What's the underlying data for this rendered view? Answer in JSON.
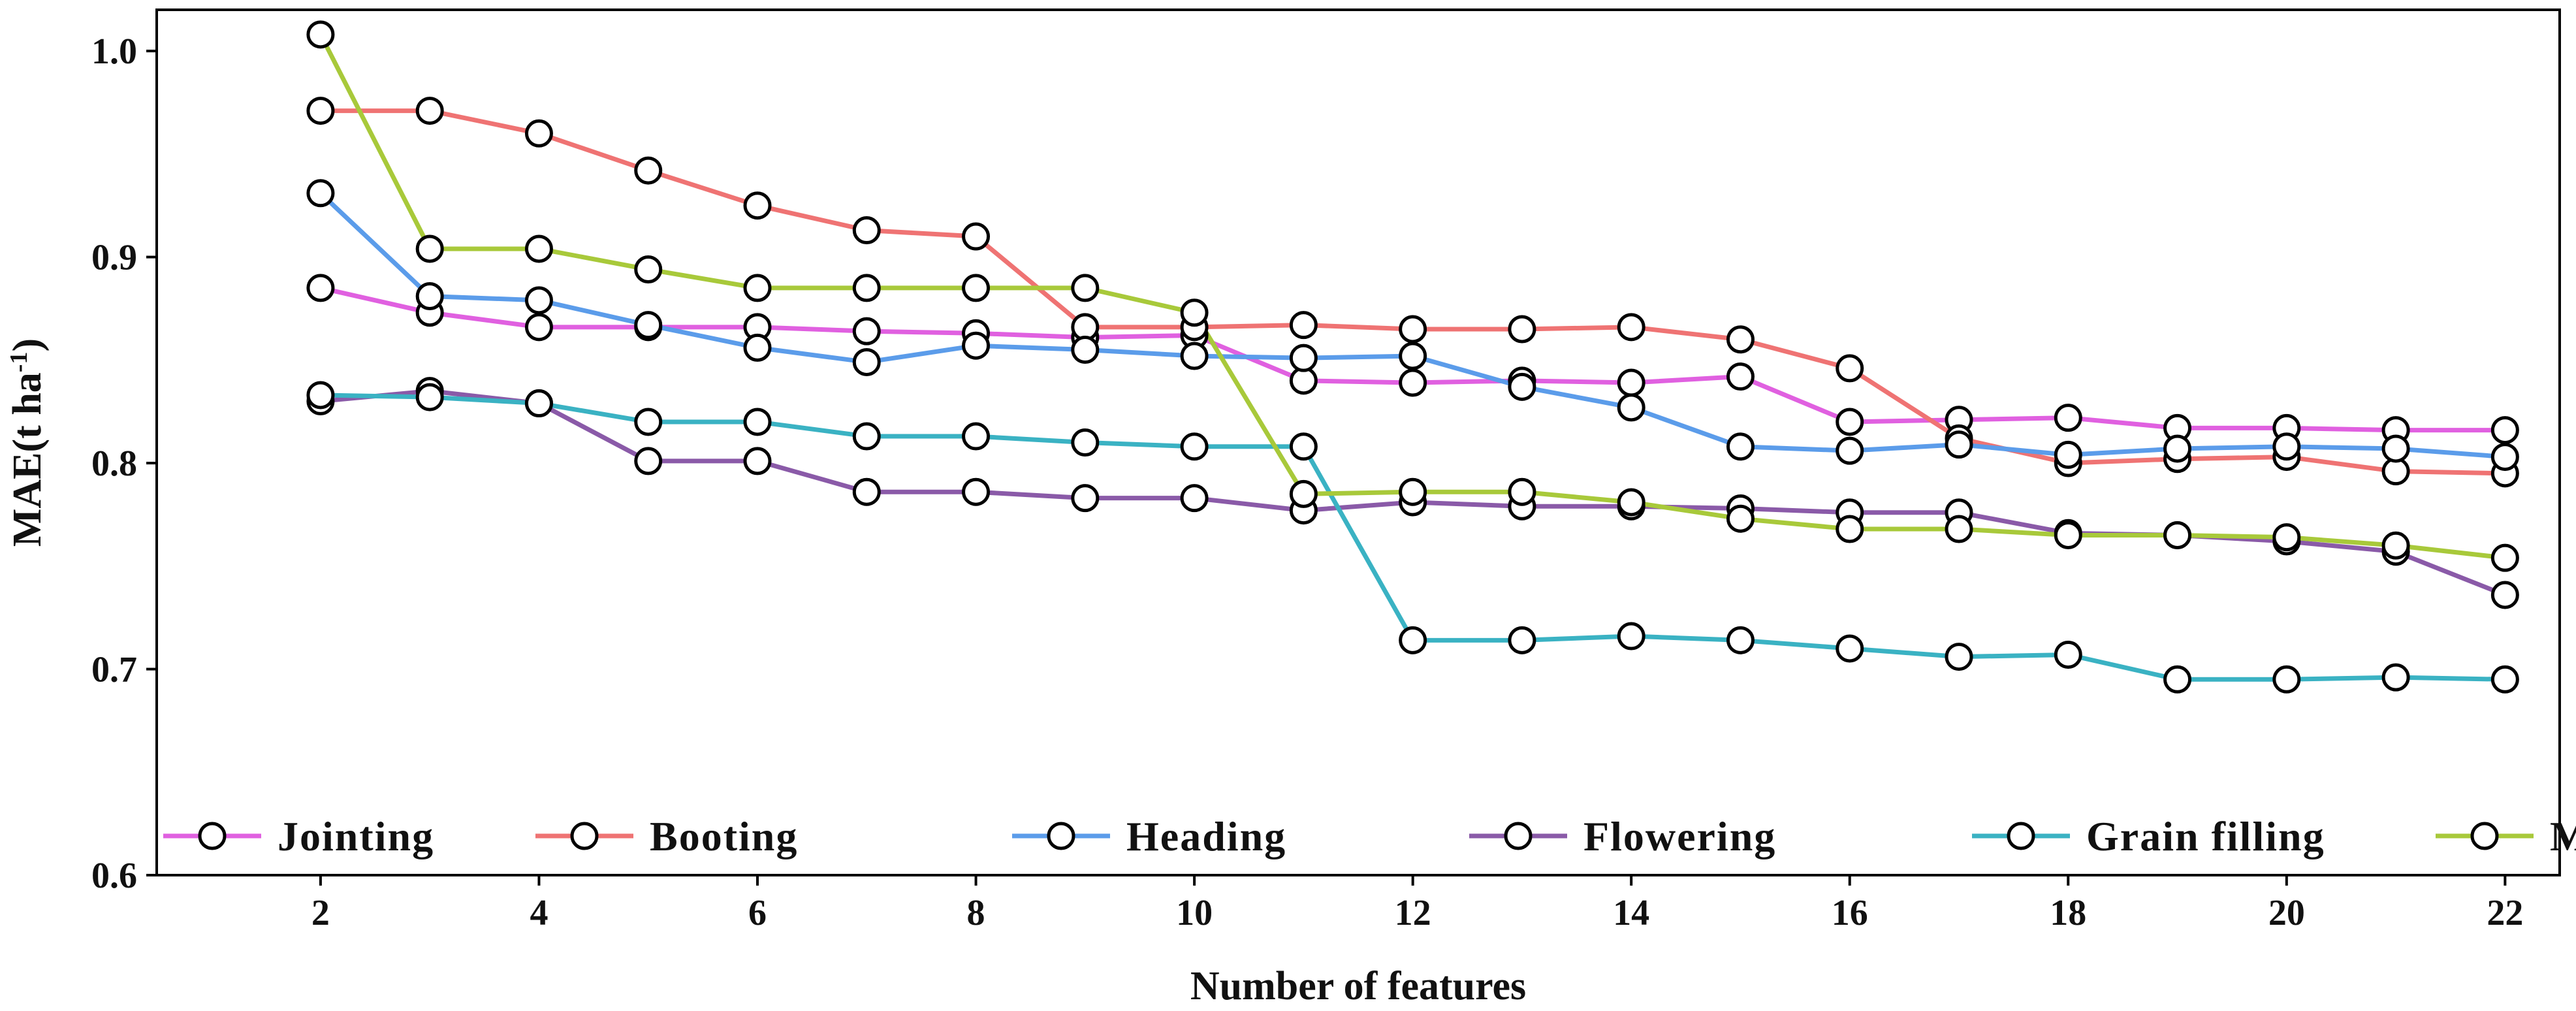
{
  "chart_data": {
    "type": "line",
    "xlabel": "Number of features",
    "ylabel": "MAE(t ha",
    "ylabel_sup": "-1",
    "ylabel_close": ")",
    "xlim": [
      0.5,
      22.5
    ],
    "ylim": [
      0.6,
      1.02
    ],
    "x_ticks": [
      2,
      4,
      6,
      8,
      10,
      12,
      14,
      16,
      18,
      20,
      22
    ],
    "y_ticks": [
      0.6,
      0.7,
      0.8,
      0.9,
      1.0
    ],
    "y_tick_labels": [
      "0.6",
      "0.7",
      "0.8",
      "0.9",
      "1.0"
    ],
    "grid": false,
    "legend_position": "bottom",
    "x": [
      2,
      3,
      4,
      5,
      6,
      7,
      8,
      9,
      10,
      11,
      12,
      13,
      14,
      15,
      16,
      17,
      18,
      19,
      20,
      21,
      22
    ],
    "series": [
      {
        "name": "Jointing",
        "color": "#e060e0",
        "values": [
          0.885,
          0.873,
          0.866,
          0.866,
          0.866,
          0.864,
          0.863,
          0.861,
          0.862,
          0.84,
          0.839,
          0.84,
          0.839,
          0.842,
          0.82,
          0.821,
          0.822,
          0.817,
          0.817,
          0.816,
          0.816
        ]
      },
      {
        "name": "Booting",
        "color": "#ef7373",
        "values": [
          0.971,
          0.971,
          0.96,
          0.942,
          0.925,
          0.913,
          0.91,
          0.866,
          0.866,
          0.867,
          0.865,
          0.865,
          0.866,
          0.86,
          0.846,
          0.812,
          0.8,
          0.802,
          0.803,
          0.796,
          0.795
        ]
      },
      {
        "name": "Heading",
        "color": "#5b9cea",
        "values": [
          0.931,
          0.881,
          0.879,
          0.867,
          0.856,
          0.849,
          0.857,
          0.855,
          0.852,
          0.851,
          0.852,
          0.837,
          0.827,
          0.808,
          0.806,
          0.809,
          0.804,
          0.807,
          0.808,
          0.807,
          0.803
        ]
      },
      {
        "name": "Flowering",
        "color": "#8a5aa8",
        "values": [
          0.83,
          0.835,
          0.829,
          0.801,
          0.801,
          0.786,
          0.786,
          0.783,
          0.783,
          0.777,
          0.781,
          0.779,
          0.779,
          0.778,
          0.776,
          0.776,
          0.766,
          0.765,
          0.762,
          0.757,
          0.736
        ]
      },
      {
        "name": "Grain filling",
        "color": "#3ab2c3",
        "values": [
          0.833,
          0.832,
          0.829,
          0.82,
          0.82,
          0.813,
          0.813,
          0.81,
          0.808,
          0.808,
          0.714,
          0.714,
          0.716,
          0.714,
          0.71,
          0.706,
          0.707,
          0.695,
          0.695,
          0.696,
          0.695
        ]
      },
      {
        "name": "Maturity",
        "color": "#a8c93a",
        "values": [
          1.008,
          0.904,
          0.904,
          0.894,
          0.885,
          0.885,
          0.885,
          0.885,
          0.873,
          0.785,
          0.786,
          0.786,
          0.781,
          0.773,
          0.768,
          0.768,
          0.765,
          0.765,
          0.764,
          0.76,
          0.754
        ]
      }
    ]
  }
}
